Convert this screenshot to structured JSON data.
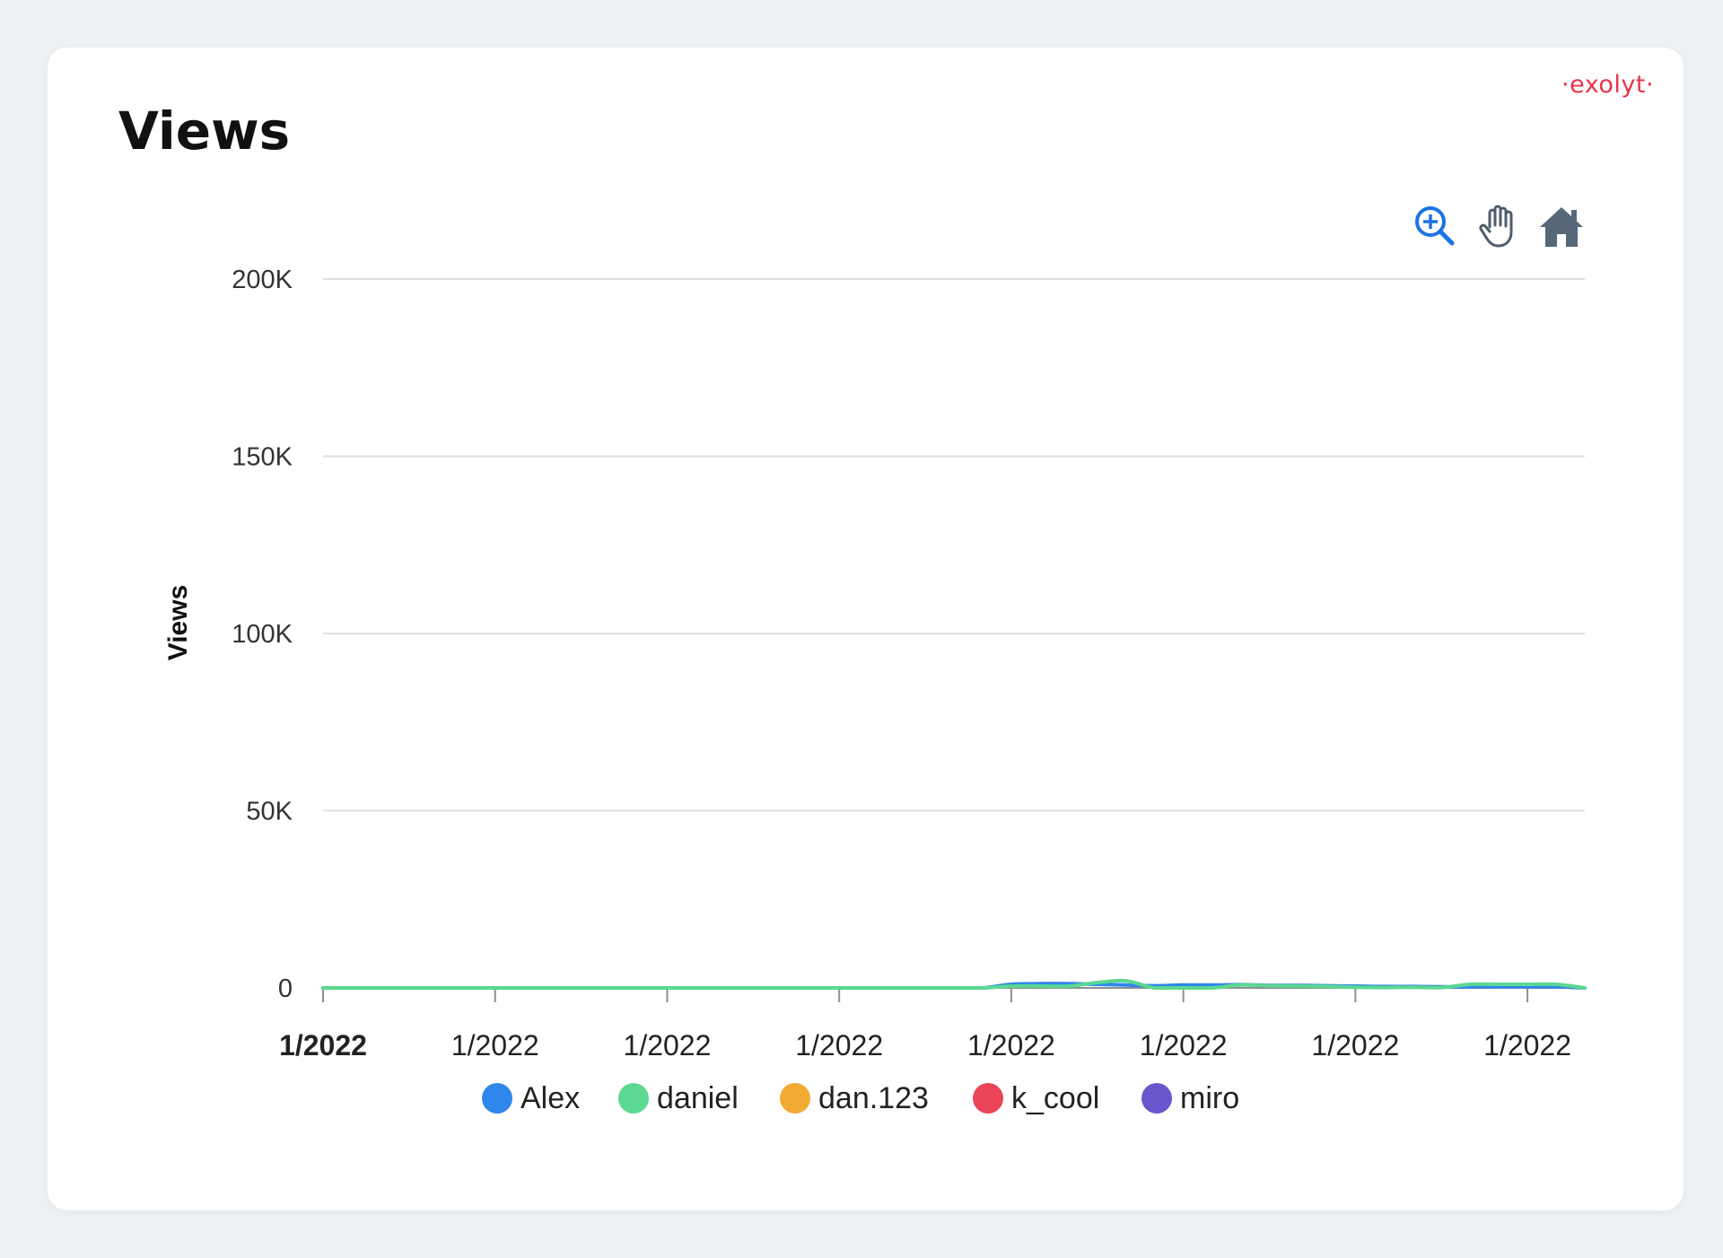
{
  "card": {
    "title": "Views",
    "brand": "·exolyt·"
  },
  "toolbar": {
    "icons": [
      "zoom-in-icon",
      "pan-hand-icon",
      "home-icon"
    ]
  },
  "colors": {
    "Alex": "#2f86eb",
    "daniel": "#5bd891",
    "dan.123": "#f2ab32",
    "k_cool": "#ea4458",
    "miro": "#6b55cc",
    "accent_brand": "#e8334a",
    "toolbar_blue": "#1b74e4"
  },
  "chart_data": {
    "type": "line",
    "title": "",
    "xlabel": "",
    "ylabel": "Views",
    "ylim": [
      0,
      200000
    ],
    "yticks": [
      0,
      50000,
      100000,
      150000,
      200000
    ],
    "ytick_labels": [
      "0",
      "50K",
      "100K",
      "150K",
      "200K"
    ],
    "xticks": [
      0,
      3,
      6,
      9,
      12,
      15,
      18,
      21
    ],
    "xtick_labels": [
      "1/2022",
      "1/2022",
      "1/2022",
      "1/2022",
      "1/2022",
      "1/2022",
      "1/2022",
      "1/2022"
    ],
    "xlim": [
      0,
      22
    ],
    "x": [
      0,
      0.5,
      1,
      1.5,
      2,
      2.5,
      3,
      3.5,
      4,
      4.5,
      5,
      5.5,
      6,
      6.5,
      7,
      7.5,
      8,
      8.5,
      9,
      9.5,
      10,
      10.5,
      11,
      11.5,
      12,
      12.5,
      13,
      13.5,
      14,
      14.5,
      15,
      15.5,
      16,
      16.5,
      17,
      17.5,
      18,
      18.5,
      19,
      19.5,
      20,
      20.5,
      21,
      21.5,
      22
    ],
    "grid": true,
    "legend": "bottom",
    "series": [
      {
        "name": "Alex",
        "values": [
          0,
          0,
          0,
          0,
          0,
          0,
          0,
          0,
          0,
          0,
          0,
          0,
          0,
          0,
          0,
          0,
          0,
          0,
          0,
          0,
          0,
          0,
          0,
          0,
          1000,
          1200,
          1200,
          1000,
          800,
          600,
          800,
          800,
          900,
          700,
          700,
          600,
          500,
          400,
          400,
          300,
          300,
          300,
          300,
          300,
          0
        ]
      },
      {
        "name": "daniel",
        "values": [
          0,
          0,
          0,
          0,
          0,
          0,
          0,
          0,
          0,
          0,
          0,
          0,
          0,
          0,
          0,
          0,
          0,
          0,
          0,
          0,
          0,
          0,
          0,
          0,
          500,
          500,
          500,
          1500,
          2000,
          0,
          0,
          0,
          800,
          600,
          500,
          400,
          200,
          100,
          200,
          100,
          1000,
          1000,
          1000,
          1000,
          0
        ]
      }
    ]
  },
  "legend": {
    "items": [
      {
        "label": "Alex",
        "color": "#2f86eb"
      },
      {
        "label": "daniel",
        "color": "#5bd891"
      },
      {
        "label": "dan.123",
        "color": "#f2ab32"
      },
      {
        "label": "k_cool",
        "color": "#ea4458"
      },
      {
        "label": "miro",
        "color": "#6b55cc"
      }
    ]
  }
}
